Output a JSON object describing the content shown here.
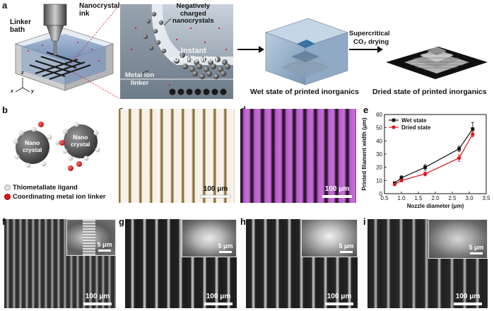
{
  "panels": {
    "a": "a",
    "b": "b",
    "c": "c",
    "d": "d",
    "e": "e",
    "f": "f",
    "g": "g",
    "h": "h",
    "i": "i"
  },
  "panel_a": {
    "nanocrystal_ink": "Nanocrystal\nink",
    "linker_bath": "Linker\nbath",
    "negatively_charged": "Negatively\ncharged\nnanocrystals",
    "instant_solidification": "Instant\nsolidification",
    "metal_ion_linker": "Metal ion\nlinker",
    "supercritical": "Supercritical",
    "co2_drying": "CO₂ drying",
    "wet_state": "Wet state of printed inorganics",
    "dried_state": "Dried state of printed inorganics",
    "axis_x": "x",
    "axis_y": "y",
    "axis_z": "z"
  },
  "panel_b": {
    "nano_crystal_left": "Nano\ncrystal",
    "nano_crystal_right": "Nano\ncrystal",
    "legend_ligand": "Thiometallate ligand",
    "legend_linker": "Coordinating metal ion linker",
    "ligand_color": "#e0e0e0",
    "linker_color": "#d61a1a"
  },
  "scale_bars": {
    "c": "100 μm",
    "d": "100 μm",
    "f": "100 μm",
    "f_inset": "5 μm",
    "g": "100 μm",
    "g_inset": "5 μm",
    "h": "100 μm",
    "h_inset": "5 μm",
    "i": "100 μm",
    "i_inset": "5 μm"
  },
  "chart_data": {
    "type": "line",
    "xlabel": "Nozzle diameter (μm)",
    "ylabel": "Printed filament width (μm)",
    "xlim": [
      0.5,
      3.5
    ],
    "ylim": [
      0,
      60
    ],
    "xticks": [
      "0.5",
      "1.0",
      "1.5",
      "2.0",
      "2.5",
      "3.0",
      "3.5"
    ],
    "yticks": [
      "0",
      "10",
      "20",
      "30",
      "40",
      "50",
      "60"
    ],
    "legend_position": "top-left",
    "series": [
      {
        "name": "Wet state",
        "color": "#111111",
        "marker": "square",
        "x": [
          0.8,
          1.0,
          1.7,
          2.7,
          3.1
        ],
        "y": [
          8,
          12,
          20,
          34,
          49
        ],
        "err": [
          1,
          1.5,
          2,
          2,
          5
        ]
      },
      {
        "name": "Dried state",
        "color": "#e0161b",
        "marker": "circle",
        "x": [
          0.8,
          1.0,
          1.7,
          2.7,
          3.1
        ],
        "y": [
          7,
          10,
          15,
          27,
          45
        ],
        "err": [
          0.8,
          1,
          1.5,
          2.5,
          2
        ]
      }
    ]
  }
}
